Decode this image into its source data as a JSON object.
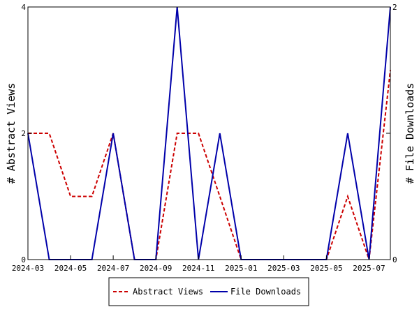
{
  "chart_data": {
    "type": "line",
    "x": [
      "2024-03",
      "2024-04",
      "2024-05",
      "2024-06",
      "2024-07",
      "2024-08",
      "2024-09",
      "2024-10",
      "2024-11",
      "2024-12",
      "2025-01",
      "2025-02",
      "2025-03",
      "2025-04",
      "2025-05",
      "2025-06",
      "2025-07",
      "2025-08"
    ],
    "x_tick_labels": [
      "2024-03",
      "2024-05",
      "2024-07",
      "2024-09",
      "2024-11",
      "2025-01",
      "2025-03",
      "2025-05",
      "2025-07"
    ],
    "series": [
      {
        "name": "Abstract Views",
        "axis": "left",
        "color": "#cc0000",
        "dash": "dashed",
        "values": [
          2,
          2,
          1,
          1,
          2,
          0,
          0,
          2,
          2,
          1,
          0,
          0,
          0,
          0,
          0,
          1,
          0,
          3
        ]
      },
      {
        "name": "File Downloads",
        "axis": "right",
        "color": "#0000aa",
        "dash": "solid",
        "values": [
          1,
          0,
          0,
          0,
          1,
          0,
          0,
          2,
          0,
          1,
          0,
          0,
          0,
          0,
          0,
          1,
          0,
          2
        ]
      }
    ],
    "ylabel_left": "# Abstract Views",
    "ylabel_right": "# File Downloads",
    "ylim_left": [
      0,
      4
    ],
    "ylim_right": [
      0,
      2
    ],
    "yticks_left": [
      "0",
      "2",
      "4"
    ],
    "yticks_right": [
      "0",
      "1",
      "2"
    ],
    "grid": false,
    "legend_placement": "bottom-center"
  }
}
